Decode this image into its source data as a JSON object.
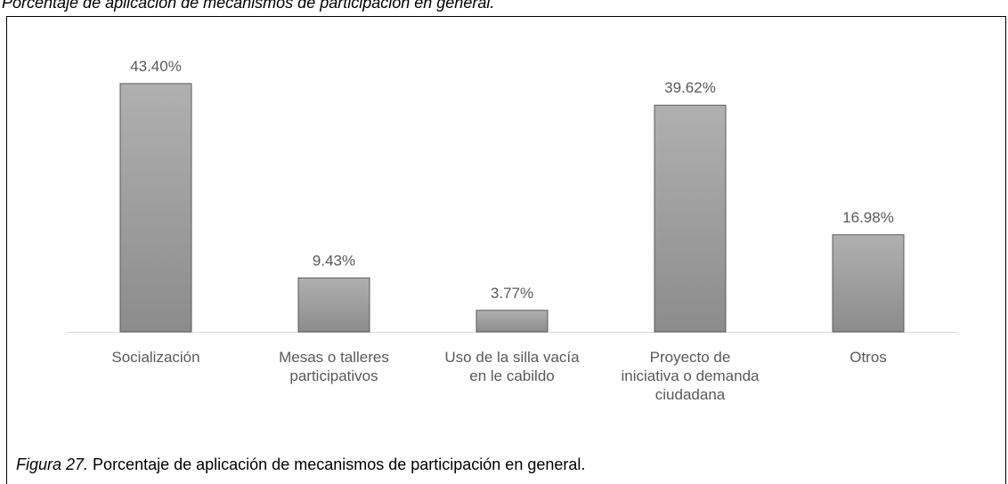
{
  "chart_data": {
    "type": "bar",
    "title": "Porcentaje de aplicación de mecanismos de participación en general.",
    "categories": [
      "Socialización",
      "Mesas o talleres participativos",
      "Uso de la silla vacía en le cabildo",
      "Proyecto de iniciativa o demanda ciudadana",
      "Otros"
    ],
    "values": [
      43.4,
      9.43,
      3.77,
      39.62,
      16.98
    ],
    "value_labels": [
      "43.40%",
      "9.43%",
      "3.77%",
      "39.62%",
      "16.98%"
    ],
    "color": "#a6a6a6",
    "caption_label": "Figura 27.",
    "caption_text": " Porcentaje de aplicación de mecanismos de participación en general."
  }
}
